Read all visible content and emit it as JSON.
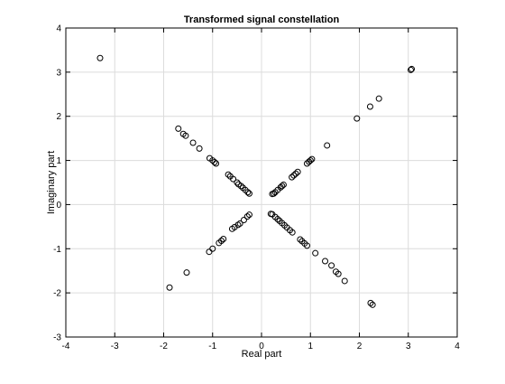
{
  "chart_data": {
    "type": "scatter",
    "title": "Transformed signal constellation",
    "xlabel": "Real part",
    "ylabel": "Imaginary part",
    "xlim": [
      -4,
      4
    ],
    "ylim": [
      -3,
      4
    ],
    "xticks": [
      -4,
      -3,
      -2,
      -1,
      0,
      1,
      2,
      3,
      4
    ],
    "yticks": [
      -3,
      -2,
      -1,
      0,
      1,
      2,
      3,
      4
    ],
    "grid": true,
    "marker": "open-circle",
    "color": "#000000",
    "points": [
      [
        -3.3,
        3.32
      ],
      [
        3.07,
        3.07
      ],
      [
        3.05,
        3.05
      ],
      [
        2.4,
        2.4
      ],
      [
        2.22,
        2.22
      ],
      [
        1.95,
        1.95
      ],
      [
        1.34,
        1.34
      ],
      [
        1.03,
        1.03
      ],
      [
        1.0,
        1.0
      ],
      [
        0.97,
        0.97
      ],
      [
        0.93,
        0.93
      ],
      [
        0.74,
        0.74
      ],
      [
        0.7,
        0.7
      ],
      [
        0.66,
        0.66
      ],
      [
        0.62,
        0.62
      ],
      [
        0.45,
        0.45
      ],
      [
        0.42,
        0.42
      ],
      [
        0.39,
        0.39
      ],
      [
        0.33,
        0.33
      ],
      [
        0.28,
        0.28
      ],
      [
        0.25,
        0.25
      ],
      [
        0.22,
        0.24
      ],
      [
        -1.7,
        1.72
      ],
      [
        -1.6,
        1.6
      ],
      [
        -1.55,
        1.56
      ],
      [
        -1.4,
        1.4
      ],
      [
        -1.27,
        1.27
      ],
      [
        -1.06,
        1.05
      ],
      [
        -1.0,
        1.0
      ],
      [
        -0.96,
        0.96
      ],
      [
        -0.93,
        0.93
      ],
      [
        -0.68,
        0.68
      ],
      [
        -0.64,
        0.64
      ],
      [
        -0.58,
        0.58
      ],
      [
        -0.5,
        0.5
      ],
      [
        -0.47,
        0.46
      ],
      [
        -0.42,
        0.42
      ],
      [
        -0.38,
        0.38
      ],
      [
        -0.33,
        0.33
      ],
      [
        -0.28,
        0.28
      ],
      [
        -0.25,
        0.25
      ],
      [
        -1.88,
        -1.88
      ],
      [
        -1.53,
        -1.54
      ],
      [
        -1.07,
        -1.07
      ],
      [
        -1.0,
        -1.0
      ],
      [
        -0.87,
        -0.87
      ],
      [
        -0.82,
        -0.82
      ],
      [
        -0.78,
        -0.78
      ],
      [
        -0.6,
        -0.55
      ],
      [
        -0.55,
        -0.51
      ],
      [
        -0.48,
        -0.46
      ],
      [
        -0.44,
        -0.43
      ],
      [
        -0.36,
        -0.35
      ],
      [
        -0.29,
        -0.27
      ],
      [
        -0.25,
        -0.23
      ],
      [
        2.23,
        -2.23
      ],
      [
        2.27,
        -2.27
      ],
      [
        1.7,
        -1.73
      ],
      [
        1.57,
        -1.57
      ],
      [
        1.52,
        -1.52
      ],
      [
        1.43,
        -1.38
      ],
      [
        1.3,
        -1.28
      ],
      [
        1.1,
        -1.1
      ],
      [
        0.93,
        -0.93
      ],
      [
        0.88,
        -0.88
      ],
      [
        0.83,
        -0.83
      ],
      [
        0.79,
        -0.79
      ],
      [
        0.63,
        -0.63
      ],
      [
        0.58,
        -0.58
      ],
      [
        0.52,
        -0.52
      ],
      [
        0.47,
        -0.47
      ],
      [
        0.42,
        -0.42
      ],
      [
        0.37,
        -0.37
      ],
      [
        0.33,
        -0.33
      ],
      [
        0.28,
        -0.28
      ],
      [
        0.22,
        -0.22
      ],
      [
        0.19,
        -0.21
      ]
    ]
  }
}
